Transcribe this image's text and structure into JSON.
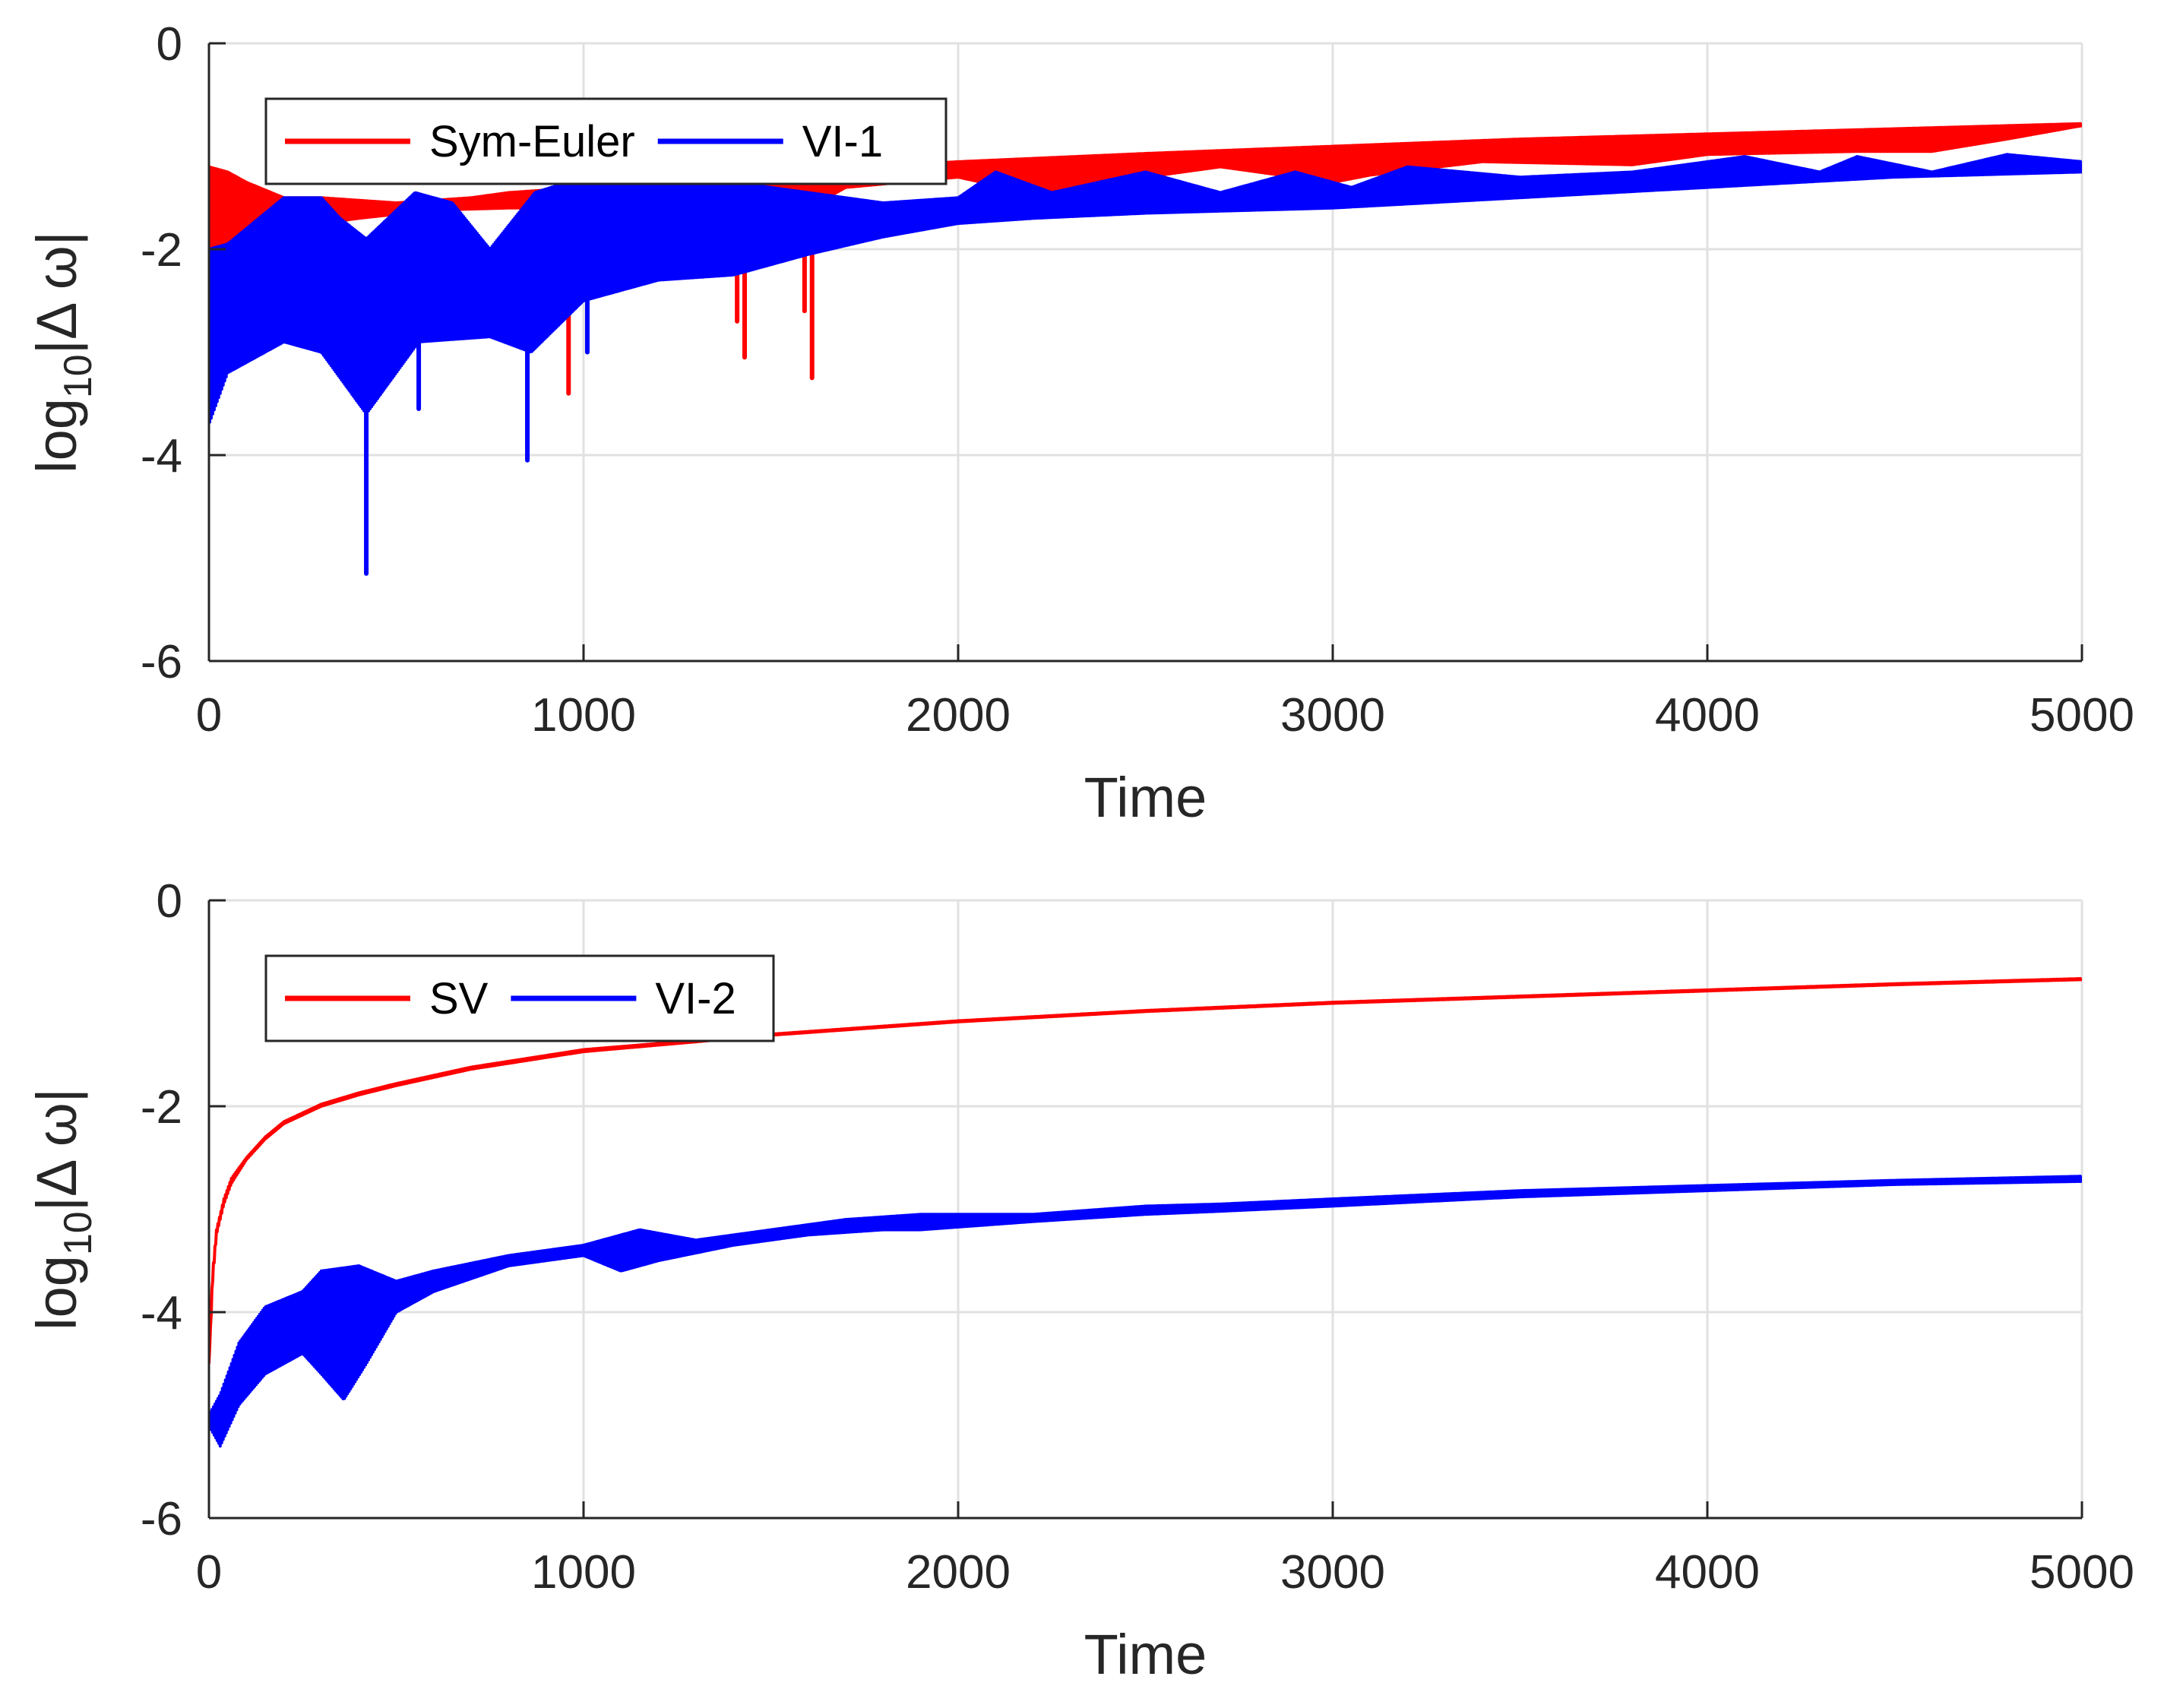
{
  "chart_data": [
    {
      "type": "line",
      "xlabel": "Time",
      "ylabel": {
        "base": "log",
        "sub": "10",
        "rest": "|Δ ω|"
      },
      "xlim": [
        0,
        5000
      ],
      "ylim": [
        -6,
        0
      ],
      "xticks": [
        0,
        1000,
        2000,
        3000,
        4000,
        5000
      ],
      "yticks": [
        0,
        -2,
        -4,
        -6
      ],
      "grid": true,
      "legend_position": "top-left",
      "series": [
        {
          "name": "Sym-Euler",
          "color": "#ff0000",
          "envelope_upper": [
            [
              0,
              -1.2
            ],
            [
              50,
              -1.25
            ],
            [
              100,
              -1.35
            ],
            [
              200,
              -1.5
            ],
            [
              300,
              -1.5
            ],
            [
              500,
              -1.55
            ],
            [
              700,
              -1.5
            ],
            [
              800,
              -1.45
            ],
            [
              1000,
              -1.4
            ],
            [
              1200,
              -1.32
            ],
            [
              1500,
              -1.25
            ],
            [
              2000,
              -1.15
            ],
            [
              2500,
              -1.07
            ],
            [
              3000,
              -1.0
            ],
            [
              3500,
              -0.93
            ],
            [
              4000,
              -0.88
            ],
            [
              4500,
              -0.83
            ],
            [
              5000,
              -0.78
            ]
          ],
          "envelope_lower": [
            [
              0,
              -3.6
            ],
            [
              30,
              -2.2
            ],
            [
              100,
              -1.9
            ],
            [
              200,
              -1.8
            ],
            [
              400,
              -1.7
            ],
            [
              600,
              -1.62
            ],
            [
              800,
              -1.6
            ],
            [
              950,
              -1.6
            ],
            [
              1000,
              -1.5
            ],
            [
              1100,
              -1.4
            ],
            [
              1250,
              -1.6
            ],
            [
              1300,
              -1.4
            ],
            [
              1400,
              -1.6
            ],
            [
              1450,
              -1.7
            ],
            [
              1520,
              -1.75
            ],
            [
              1600,
              -1.6
            ],
            [
              1700,
              -1.4
            ],
            [
              2000,
              -1.3
            ],
            [
              2150,
              -1.42
            ],
            [
              2280,
              -1.52
            ],
            [
              2400,
              -1.35
            ],
            [
              2700,
              -1.2
            ],
            [
              3000,
              -1.35
            ],
            [
              3100,
              -1.28
            ],
            [
              3400,
              -1.15
            ],
            [
              3800,
              -1.18
            ],
            [
              4000,
              -1.08
            ],
            [
              4400,
              -1.05
            ],
            [
              4600,
              -1.05
            ],
            [
              4800,
              -0.93
            ],
            [
              5000,
              -0.8
            ]
          ],
          "dips": [
            [
              960,
              -3.4
            ],
            [
              1410,
              -2.7
            ],
            [
              1430,
              -3.05
            ],
            [
              1590,
              -2.6
            ],
            [
              1610,
              -3.25
            ]
          ]
        },
        {
          "name": "VI-1",
          "color": "#0000ff",
          "envelope_upper": [
            [
              0,
              -2.0
            ],
            [
              50,
              -1.95
            ],
            [
              200,
              -1.5
            ],
            [
              300,
              -1.5
            ],
            [
              350,
              -1.7
            ],
            [
              420,
              -1.9
            ],
            [
              550,
              -1.45
            ],
            [
              650,
              -1.55
            ],
            [
              750,
              -2.0
            ],
            [
              870,
              -1.45
            ],
            [
              1000,
              -1.3
            ],
            [
              1100,
              -1.35
            ],
            [
              1250,
              -1.3
            ],
            [
              1400,
              -1.35
            ],
            [
              1600,
              -1.45
            ],
            [
              1800,
              -1.55
            ],
            [
              2000,
              -1.5
            ],
            [
              2100,
              -1.25
            ],
            [
              2250,
              -1.45
            ],
            [
              2500,
              -1.25
            ],
            [
              2700,
              -1.45
            ],
            [
              2900,
              -1.25
            ],
            [
              3050,
              -1.4
            ],
            [
              3200,
              -1.2
            ],
            [
              3500,
              -1.3
            ],
            [
              3800,
              -1.25
            ],
            [
              4100,
              -1.1
            ],
            [
              4300,
              -1.25
            ],
            [
              4400,
              -1.1
            ],
            [
              4600,
              -1.25
            ],
            [
              4800,
              -1.08
            ],
            [
              5000,
              -1.15
            ]
          ],
          "envelope_lower": [
            [
              0,
              -3.7
            ],
            [
              50,
              -3.2
            ],
            [
              200,
              -2.9
            ],
            [
              300,
              -3.0
            ],
            [
              420,
              -3.6
            ],
            [
              560,
              -2.9
            ],
            [
              750,
              -2.85
            ],
            [
              860,
              -3.0
            ],
            [
              1000,
              -2.5
            ],
            [
              1200,
              -2.3
            ],
            [
              1400,
              -2.25
            ],
            [
              1600,
              -2.05
            ],
            [
              1800,
              -1.88
            ],
            [
              2000,
              -1.75
            ],
            [
              2200,
              -1.7
            ],
            [
              2500,
              -1.65
            ],
            [
              3000,
              -1.6
            ],
            [
              3500,
              -1.5
            ],
            [
              4000,
              -1.4
            ],
            [
              4500,
              -1.3
            ],
            [
              5000,
              -1.25
            ]
          ],
          "dips": [
            [
              420,
              -5.15
            ],
            [
              560,
              -3.55
            ],
            [
              850,
              -4.05
            ],
            [
              1010,
              -3.0
            ]
          ]
        }
      ]
    },
    {
      "type": "line",
      "xlabel": "Time",
      "ylabel": {
        "base": "log",
        "sub": "10",
        "rest": "|Δ ω|"
      },
      "xlim": [
        0,
        5000
      ],
      "ylim": [
        -6,
        0
      ],
      "xticks": [
        0,
        1000,
        2000,
        3000,
        4000,
        5000
      ],
      "yticks": [
        0,
        -2,
        -4,
        -6
      ],
      "grid": true,
      "legend_position": "top-left",
      "series": [
        {
          "name": "SV",
          "color": "#ff0000",
          "envelope_upper": [
            [
              0,
              -4.5
            ],
            [
              10,
              -3.6
            ],
            [
              20,
              -3.2
            ],
            [
              40,
              -2.9
            ],
            [
              60,
              -2.7
            ],
            [
              100,
              -2.5
            ],
            [
              150,
              -2.3
            ],
            [
              200,
              -2.15
            ],
            [
              300,
              -1.98
            ],
            [
              400,
              -1.87
            ],
            [
              500,
              -1.78
            ],
            [
              700,
              -1.62
            ],
            [
              1000,
              -1.45
            ],
            [
              1500,
              -1.3
            ],
            [
              2000,
              -1.17
            ],
            [
              2500,
              -1.07
            ],
            [
              3000,
              -0.99
            ],
            [
              3500,
              -0.93
            ],
            [
              4000,
              -0.87
            ],
            [
              4500,
              -0.81
            ],
            [
              5000,
              -0.76
            ]
          ],
          "envelope_lower": [
            [
              0,
              -4.5
            ],
            [
              10,
              -3.7
            ],
            [
              20,
              -3.25
            ],
            [
              40,
              -2.95
            ],
            [
              60,
              -2.75
            ],
            [
              100,
              -2.52
            ],
            [
              150,
              -2.32
            ],
            [
              200,
              -2.17
            ],
            [
              300,
              -2.0
            ],
            [
              400,
              -1.89
            ],
            [
              500,
              -1.8
            ],
            [
              700,
              -1.64
            ],
            [
              1000,
              -1.47
            ],
            [
              1500,
              -1.31
            ],
            [
              2000,
              -1.18
            ],
            [
              2500,
              -1.08
            ],
            [
              3000,
              -1.0
            ],
            [
              3500,
              -0.94
            ],
            [
              4000,
              -0.88
            ],
            [
              4500,
              -0.82
            ],
            [
              5000,
              -0.77
            ]
          ],
          "dips": []
        },
        {
          "name": "VI-2",
          "color": "#0000ff",
          "envelope_upper": [
            [
              0,
              -5.0
            ],
            [
              30,
              -4.8
            ],
            [
              80,
              -4.3
            ],
            [
              150,
              -3.95
            ],
            [
              250,
              -3.8
            ],
            [
              300,
              -3.6
            ],
            [
              400,
              -3.55
            ],
            [
              500,
              -3.7
            ],
            [
              600,
              -3.6
            ],
            [
              800,
              -3.45
            ],
            [
              1000,
              -3.35
            ],
            [
              1150,
              -3.2
            ],
            [
              1300,
              -3.3
            ],
            [
              1500,
              -3.2
            ],
            [
              1700,
              -3.1
            ],
            [
              1900,
              -3.05
            ],
            [
              2200,
              -3.05
            ],
            [
              2500,
              -2.97
            ],
            [
              2700,
              -2.95
            ],
            [
              3000,
              -2.9
            ],
            [
              3500,
              -2.82
            ],
            [
              4000,
              -2.77
            ],
            [
              4500,
              -2.72
            ],
            [
              5000,
              -2.68
            ]
          ],
          "envelope_lower": [
            [
              0,
              -5.1
            ],
            [
              30,
              -5.3
            ],
            [
              80,
              -4.9
            ],
            [
              150,
              -4.6
            ],
            [
              250,
              -4.4
            ],
            [
              300,
              -4.6
            ],
            [
              360,
              -4.85
            ],
            [
              420,
              -4.5
            ],
            [
              500,
              -4.0
            ],
            [
              600,
              -3.8
            ],
            [
              800,
              -3.55
            ],
            [
              1000,
              -3.45
            ],
            [
              1100,
              -3.6
            ],
            [
              1200,
              -3.5
            ],
            [
              1400,
              -3.35
            ],
            [
              1600,
              -3.25
            ],
            [
              1800,
              -3.2
            ],
            [
              1900,
              -3.2
            ],
            [
              2200,
              -3.12
            ],
            [
              2500,
              -3.05
            ],
            [
              2700,
              -3.02
            ],
            [
              3000,
              -2.97
            ],
            [
              3500,
              -2.88
            ],
            [
              4000,
              -2.82
            ],
            [
              4500,
              -2.76
            ],
            [
              5000,
              -2.73
            ]
          ],
          "dips": []
        }
      ]
    }
  ]
}
